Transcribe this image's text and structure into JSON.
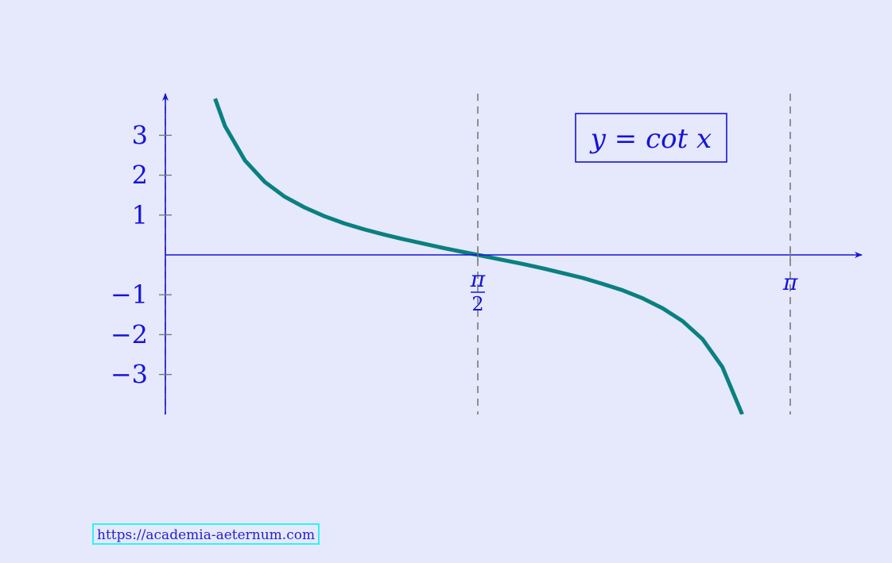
{
  "chart_data": {
    "type": "line",
    "title": "",
    "xlabel": "",
    "ylabel": "",
    "legend": "y = cot x",
    "legend_placement": "top-right",
    "function": "cot",
    "x_domain": [
      0,
      3.14159
    ],
    "xlim": [
      0,
      3.5
    ],
    "ylim": [
      -4,
      4
    ],
    "x_ticks": [
      {
        "value": 1.5708,
        "label": "π/2",
        "numerator": "π",
        "denominator": "2"
      },
      {
        "value": 3.14159,
        "label": "π",
        "numerator": "π",
        "denominator": ""
      }
    ],
    "y_ticks": [
      {
        "value": 3,
        "label": "3"
      },
      {
        "value": 2,
        "label": "2"
      },
      {
        "value": 1,
        "label": "1"
      },
      {
        "value": -1,
        "label": "−1"
      },
      {
        "value": -2,
        "label": "−2"
      },
      {
        "value": -3,
        "label": "−3"
      }
    ],
    "asymptotes_x": [
      0,
      3.14159
    ],
    "dashed_gridlines_x": [
      1.5708,
      3.14159
    ],
    "series": [
      {
        "color": "#0a8080",
        "x": [
          0.25,
          0.3,
          0.4,
          0.5,
          0.6,
          0.7,
          0.8,
          0.9,
          1.0,
          1.1,
          1.2,
          1.3,
          1.4,
          1.5,
          1.5708,
          1.7,
          1.8,
          1.9,
          2.0,
          2.1,
          2.2,
          2.3,
          2.4,
          2.5,
          2.6,
          2.7,
          2.8,
          2.9
        ],
        "y": [
          3.92,
          3.23,
          2.37,
          1.83,
          1.46,
          1.19,
          0.97,
          0.79,
          0.64,
          0.51,
          0.39,
          0.28,
          0.17,
          0.07,
          0.0,
          -0.13,
          -0.23,
          -0.34,
          -0.46,
          -0.58,
          -0.73,
          -0.89,
          -1.09,
          -1.34,
          -1.66,
          -2.11,
          -2.81,
          -4.0
        ]
      }
    ],
    "colors": {
      "axis": "#1515d6",
      "grid_dash": "#7a7a7a",
      "curve": "#0a8080",
      "background": "#e6e8fb"
    }
  },
  "footer": {
    "url_text": "https://academia-aeternum.com"
  }
}
